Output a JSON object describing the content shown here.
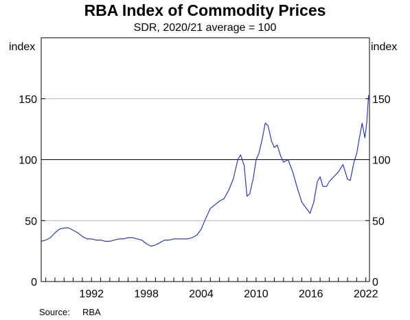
{
  "chart_data": {
    "type": "line",
    "title": "RBA Index of Commodity Prices",
    "subtitle": "SDR, 2020/21 average = 100",
    "ylabel_left": "index",
    "ylabel_right": "index",
    "xlim": [
      1986.5,
      2022.4
    ],
    "ylim": [
      0,
      200
    ],
    "yticks": [
      0,
      50,
      100,
      150
    ],
    "xticks": [
      1992,
      1998,
      2004,
      2010,
      2016,
      2022
    ],
    "gridlines": [
      50,
      100,
      150
    ],
    "series": [
      {
        "color": "#2a3aa6",
        "x": [
          1986.5,
          1987.0,
          1987.5,
          1988.0,
          1988.5,
          1989.0,
          1989.5,
          1990.0,
          1990.5,
          1991.0,
          1991.5,
          1992.0,
          1992.5,
          1993.0,
          1993.5,
          1994.0,
          1994.5,
          1995.0,
          1995.5,
          1996.0,
          1996.5,
          1997.0,
          1997.5,
          1998.0,
          1998.5,
          1999.0,
          1999.5,
          2000.0,
          2000.5,
          2001.0,
          2001.5,
          2002.0,
          2002.5,
          2003.0,
          2003.5,
          2004.0,
          2004.5,
          2005.0,
          2005.5,
          2006.0,
          2006.5,
          2007.0,
          2007.5,
          2008.0,
          2008.3,
          2008.7,
          2009.0,
          2009.3,
          2009.7,
          2010.0,
          2010.3,
          2010.7,
          2011.0,
          2011.3,
          2011.7,
          2012.0,
          2012.3,
          2012.7,
          2013.0,
          2013.5,
          2014.0,
          2014.5,
          2015.0,
          2015.5,
          2015.9,
          2016.3,
          2016.7,
          2017.0,
          2017.3,
          2017.7,
          2018.0,
          2018.5,
          2019.0,
          2019.5,
          2020.0,
          2020.3,
          2020.7,
          2021.0,
          2021.3,
          2021.6,
          2021.9,
          2022.1,
          2022.3
        ],
        "y": [
          33,
          34,
          36,
          40,
          43,
          44,
          44,
          42,
          40,
          37,
          35,
          35,
          34,
          34,
          33,
          33,
          34,
          35,
          35,
          36,
          36,
          35,
          34,
          31,
          29,
          30,
          32,
          34,
          34,
          35,
          35,
          35,
          35,
          36,
          38,
          43,
          52,
          60,
          63,
          66,
          68,
          75,
          84,
          100,
          104,
          95,
          70,
          72,
          85,
          100,
          105,
          118,
          130,
          128,
          115,
          110,
          112,
          103,
          98,
          100,
          90,
          77,
          65,
          60,
          56,
          65,
          82,
          86,
          78,
          78,
          82,
          86,
          90,
          96,
          84,
          83,
          98,
          105,
          118,
          130,
          118,
          130,
          153
        ]
      }
    ],
    "source_label": "Source:",
    "source_value": "RBA"
  }
}
